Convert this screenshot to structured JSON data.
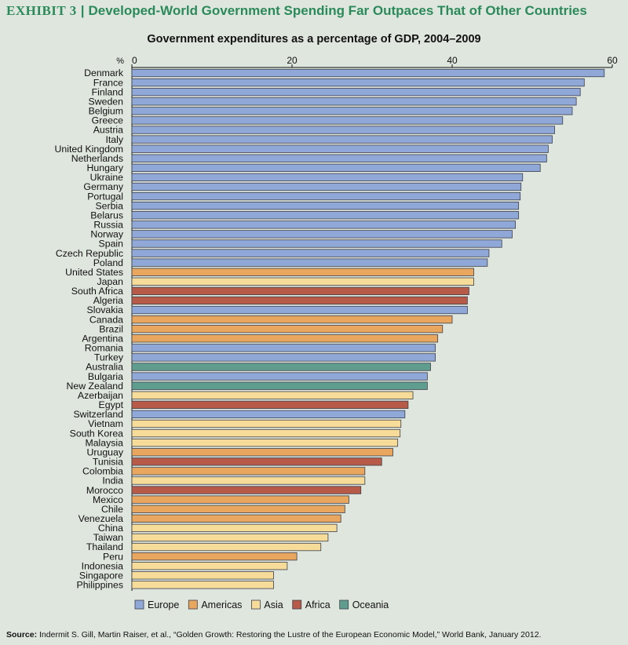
{
  "exhibit_label": "EXHIBIT 3",
  "exhibit_title": "Developed-World Government Spending Far Outpaces That of Other Countries",
  "source_label": "Source:",
  "source_text": "Indermit S. Gill, Martin Raiser, et al., “Golden Growth: Restoring the Lustre of the European Economic Model,” World Bank, January 2012.",
  "colors": {
    "Europe": "#8fa8d8",
    "Americas": "#e8a65e",
    "Asia": "#f6dc98",
    "Africa": "#b85a48",
    "Oceania": "#5f9e8f"
  },
  "chart_data": {
    "type": "bar",
    "orientation": "horizontal",
    "title": "Government expenditures as a percentage of GDP, 2004–2009",
    "axis_unit_label": "%",
    "xlim": [
      0,
      60
    ],
    "ticks": [
      0,
      20,
      40,
      60
    ],
    "legend": [
      "Europe",
      "Americas",
      "Asia",
      "Africa",
      "Oceania"
    ],
    "legend_position": "bottom",
    "bars": [
      {
        "country": "Denmark",
        "value": 59.0,
        "region": "Europe"
      },
      {
        "country": "France",
        "value": 56.5,
        "region": "Europe"
      },
      {
        "country": "Finland",
        "value": 56.0,
        "region": "Europe"
      },
      {
        "country": "Sweden",
        "value": 55.5,
        "region": "Europe"
      },
      {
        "country": "Belgium",
        "value": 55.0,
        "region": "Europe"
      },
      {
        "country": "Greece",
        "value": 53.8,
        "region": "Europe"
      },
      {
        "country": "Austria",
        "value": 52.8,
        "region": "Europe"
      },
      {
        "country": "Italy",
        "value": 52.5,
        "region": "Europe"
      },
      {
        "country": "United Kingdom",
        "value": 52.0,
        "region": "Europe"
      },
      {
        "country": "Netherlands",
        "value": 51.8,
        "region": "Europe"
      },
      {
        "country": "Hungary",
        "value": 51.0,
        "region": "Europe"
      },
      {
        "country": "Ukraine",
        "value": 48.8,
        "region": "Europe"
      },
      {
        "country": "Germany",
        "value": 48.6,
        "region": "Europe"
      },
      {
        "country": "Portugal",
        "value": 48.5,
        "region": "Europe"
      },
      {
        "country": "Serbia",
        "value": 48.3,
        "region": "Europe"
      },
      {
        "country": "Belarus",
        "value": 48.3,
        "region": "Europe"
      },
      {
        "country": "Russia",
        "value": 47.9,
        "region": "Europe"
      },
      {
        "country": "Norway",
        "value": 47.5,
        "region": "Europe"
      },
      {
        "country": "Spain",
        "value": 46.2,
        "region": "Europe"
      },
      {
        "country": "Czech Republic",
        "value": 44.6,
        "region": "Europe"
      },
      {
        "country": "Poland",
        "value": 44.4,
        "region": "Europe"
      },
      {
        "country": "United States",
        "value": 42.7,
        "region": "Americas"
      },
      {
        "country": "Japan",
        "value": 42.7,
        "region": "Asia"
      },
      {
        "country": "South Africa",
        "value": 42.1,
        "region": "Africa"
      },
      {
        "country": "Algeria",
        "value": 41.9,
        "region": "Africa"
      },
      {
        "country": "Slovakia",
        "value": 41.9,
        "region": "Europe"
      },
      {
        "country": "Canada",
        "value": 40.0,
        "region": "Americas"
      },
      {
        "country": "Brazil",
        "value": 38.8,
        "region": "Americas"
      },
      {
        "country": "Argentina",
        "value": 38.2,
        "region": "Americas"
      },
      {
        "country": "Romania",
        "value": 37.9,
        "region": "Europe"
      },
      {
        "country": "Turkey",
        "value": 37.9,
        "region": "Europe"
      },
      {
        "country": "Australia",
        "value": 37.3,
        "region": "Oceania"
      },
      {
        "country": "Bulgaria",
        "value": 36.9,
        "region": "Europe"
      },
      {
        "country": "New Zealand",
        "value": 36.9,
        "region": "Oceania"
      },
      {
        "country": "Azerbaijan",
        "value": 35.1,
        "region": "Asia"
      },
      {
        "country": "Egypt",
        "value": 34.5,
        "region": "Africa"
      },
      {
        "country": "Switzerland",
        "value": 34.1,
        "region": "Europe"
      },
      {
        "country": "Vietnam",
        "value": 33.6,
        "region": "Asia"
      },
      {
        "country": "South Korea",
        "value": 33.5,
        "region": "Asia"
      },
      {
        "country": "Malaysia",
        "value": 33.2,
        "region": "Asia"
      },
      {
        "country": "Uruguay",
        "value": 32.6,
        "region": "Americas"
      },
      {
        "country": "Tunisia",
        "value": 31.2,
        "region": "Africa"
      },
      {
        "country": "Colombia",
        "value": 29.1,
        "region": "Americas"
      },
      {
        "country": "India",
        "value": 29.1,
        "region": "Asia"
      },
      {
        "country": "Morocco",
        "value": 28.6,
        "region": "Africa"
      },
      {
        "country": "Mexico",
        "value": 27.1,
        "region": "Americas"
      },
      {
        "country": "Chile",
        "value": 26.6,
        "region": "Americas"
      },
      {
        "country": "Venezuela",
        "value": 26.1,
        "region": "Americas"
      },
      {
        "country": "China",
        "value": 25.6,
        "region": "Asia"
      },
      {
        "country": "Taiwan",
        "value": 24.5,
        "region": "Asia"
      },
      {
        "country": "Thailand",
        "value": 23.6,
        "region": "Asia"
      },
      {
        "country": "Peru",
        "value": 20.6,
        "region": "Americas"
      },
      {
        "country": "Indonesia",
        "value": 19.4,
        "region": "Asia"
      },
      {
        "country": "Singapore",
        "value": 17.7,
        "region": "Asia"
      },
      {
        "country": "Philippines",
        "value": 17.7,
        "region": "Asia"
      }
    ]
  }
}
